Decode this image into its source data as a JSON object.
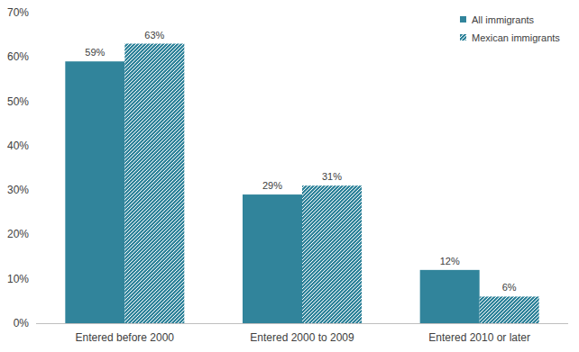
{
  "chart_data": {
    "type": "bar",
    "categories": [
      "Entered before 2000",
      "Entered 2000 to 2009",
      "Entered 2010 or later"
    ],
    "series": [
      {
        "name": "All immigrants",
        "color": "#31849b",
        "values": [
          59,
          29,
          12
        ],
        "value_labels": [
          "59%",
          "29%",
          "12%"
        ]
      },
      {
        "name": "Mexican immigrants",
        "color": "#31849b",
        "values": [
          63,
          31,
          6
        ],
        "value_labels": [
          "63%",
          "31%",
          "6%"
        ]
      }
    ],
    "ylim": [
      0,
      70
    ],
    "yticks": [
      {
        "value": 0,
        "label": "0%"
      },
      {
        "value": 10,
        "label": "10%"
      },
      {
        "value": 20,
        "label": "20%"
      },
      {
        "value": 30,
        "label": "30%"
      },
      {
        "value": 40,
        "label": "40%"
      },
      {
        "value": 50,
        "label": "50%"
      },
      {
        "value": 60,
        "label": "60%"
      },
      {
        "value": 70,
        "label": "70%"
      }
    ],
    "grid": false,
    "legend": "top-right",
    "data_labels": true
  }
}
